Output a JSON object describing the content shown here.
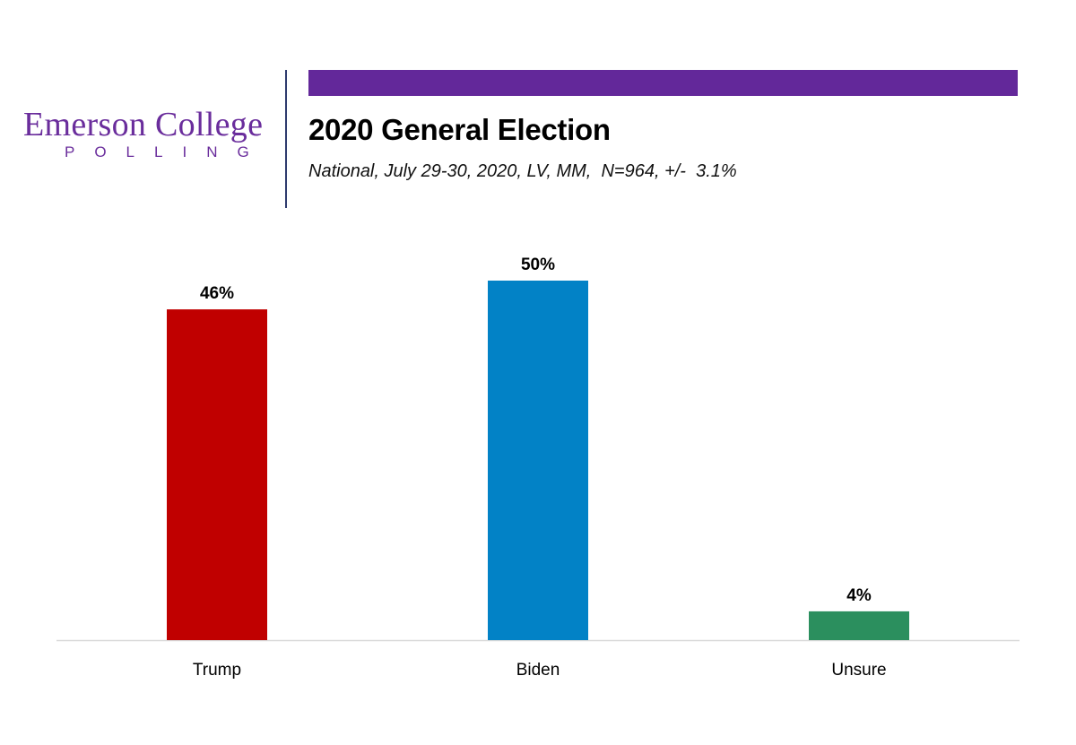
{
  "logo": {
    "main": "Emerson College",
    "sub": "POLLING",
    "color": "#6a2d9c"
  },
  "header": {
    "band_color": "#63289a",
    "title": "2020 General Election",
    "subtitle": "National, July 29-30, 2020, LV, MM,  N=964, +/-  3.1%"
  },
  "chart_data": {
    "type": "bar",
    "title": "2020 General Election",
    "subtitle": "National, July 29-30, 2020, LV, MM,  N=964, +/-  3.1%",
    "categories": [
      "Trump",
      "Biden",
      "Unsure"
    ],
    "values": [
      46,
      50,
      4
    ],
    "value_labels": [
      "46%",
      "50%",
      "4%"
    ],
    "colors": [
      "#c00000",
      "#0282c6",
      "#2b8f5e"
    ],
    "xlabel": "",
    "ylabel": "",
    "ylim": [
      0,
      50
    ],
    "grid": false,
    "legend": "none",
    "axis_color": "#d9d9d9"
  }
}
